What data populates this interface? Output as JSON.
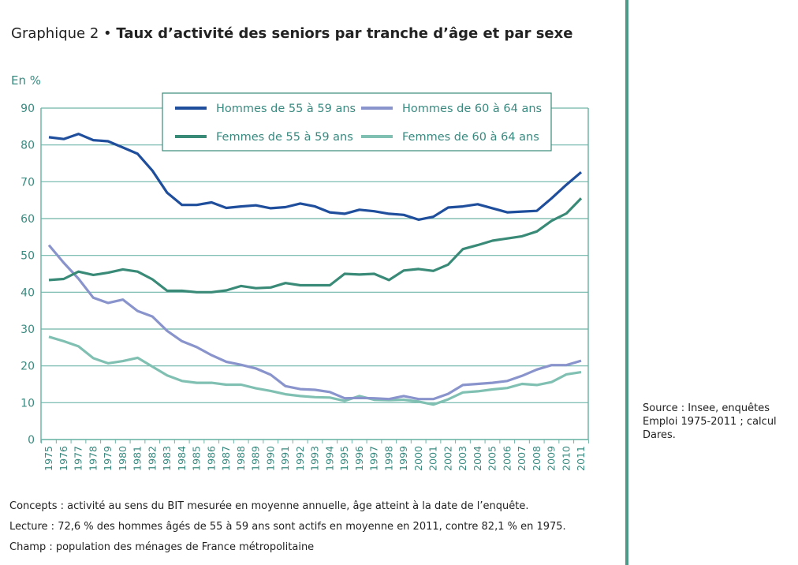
{
  "title_prefix": "Graphique 2",
  "title_main": "Taux d’activité des seniors par tranche d’âge et par sexe",
  "source": "Source : Insee, enquêtes Emploi 1975-2011 ; calcul Dares.",
  "notes": [
    "Concepts : activité au sens du BIT mesurée en moyenne annuelle, âge atteint à la date de l’enquête.",
    "Lecture : 72,6 % des hommes âgés de 55 à 59 ans sont actifs en moyenne en 2011, contre 82,1 % en 1975.",
    "Champ : population des ménages de France métropolitaine"
  ],
  "chart_data": {
    "type": "line",
    "title": "Taux d’activité des seniors par tranche d’âge et par sexe",
    "ylabel": "En %",
    "xlabel": "",
    "ylim": [
      0,
      90
    ],
    "yticks": [
      0,
      10,
      20,
      30,
      40,
      50,
      60,
      70,
      80,
      90
    ],
    "grid": true,
    "legend_position": "top-center",
    "x": [
      1975,
      1976,
      1977,
      1978,
      1979,
      1980,
      1981,
      1982,
      1983,
      1984,
      1985,
      1986,
      1987,
      1988,
      1989,
      1990,
      1991,
      1992,
      1993,
      1994,
      1995,
      1996,
      1997,
      1998,
      1999,
      2000,
      2001,
      2002,
      2003,
      2004,
      2005,
      2006,
      2007,
      2008,
      2009,
      2010,
      2011
    ],
    "series": [
      {
        "name": "Hommes de 55 à 59 ans",
        "color": "#1f4e9c",
        "values": [
          82.1,
          81.6,
          83.0,
          81.3,
          81.0,
          79.3,
          77.6,
          73.0,
          67.0,
          63.7,
          63.7,
          64.4,
          62.9,
          63.3,
          63.6,
          62.8,
          63.1,
          64.1,
          63.3,
          61.7,
          61.3,
          62.4,
          62.0,
          61.3,
          61.0,
          59.7,
          60.5,
          63.0,
          63.3,
          63.9,
          62.8,
          61.7,
          61.9,
          62.1,
          65.5,
          69.2,
          72.6
        ]
      },
      {
        "name": "Hommes de 60 à 64 ans",
        "color": "#8a94cc",
        "values": [
          52.8,
          48.0,
          43.7,
          38.5,
          37.1,
          38.0,
          34.9,
          33.4,
          29.5,
          26.7,
          25.1,
          22.9,
          21.1,
          20.3,
          19.3,
          17.6,
          14.5,
          13.7,
          13.5,
          12.9,
          11.2,
          11.3,
          11.2,
          11.0,
          11.8,
          11.0,
          11.0,
          12.4,
          14.8,
          15.1,
          15.4,
          15.9,
          17.3,
          19.0,
          20.2,
          20.2,
          21.4
        ]
      },
      {
        "name": "Femmes de 55 à 59 ans",
        "color": "#3a8a78",
        "values": [
          43.3,
          43.6,
          45.6,
          44.7,
          45.3,
          46.2,
          45.6,
          43.5,
          40.4,
          40.4,
          40.0,
          40.0,
          40.5,
          41.7,
          41.1,
          41.3,
          42.5,
          41.9,
          41.9,
          41.9,
          45.0,
          44.8,
          45.0,
          43.3,
          45.9,
          46.3,
          45.8,
          47.5,
          51.7,
          52.8,
          54.0,
          54.6,
          55.2,
          56.5,
          59.4,
          61.4,
          65.5
        ]
      },
      {
        "name": "Femmes de 60 à 64 ans",
        "color": "#80c0b2",
        "values": [
          27.9,
          26.7,
          25.3,
          22.1,
          20.7,
          21.3,
          22.2,
          19.8,
          17.4,
          15.9,
          15.4,
          15.4,
          14.9,
          14.9,
          13.9,
          13.2,
          12.3,
          11.8,
          11.5,
          11.4,
          10.5,
          11.8,
          10.8,
          10.7,
          10.8,
          10.3,
          9.5,
          10.9,
          12.8,
          13.1,
          13.6,
          14.0,
          15.1,
          14.8,
          15.6,
          17.7,
          18.3
        ]
      }
    ]
  }
}
